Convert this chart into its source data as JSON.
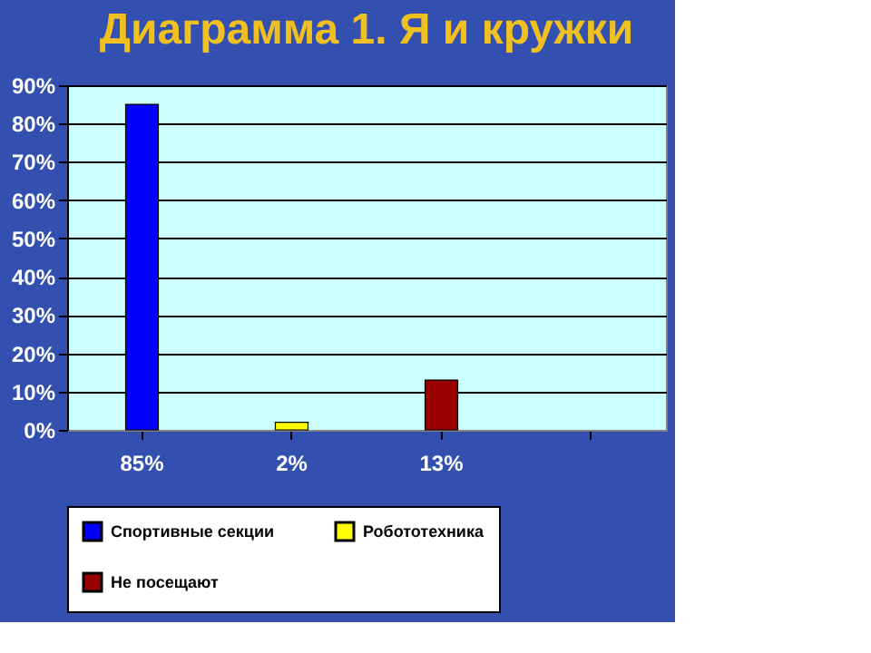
{
  "chart_data": {
    "type": "bar",
    "title": "Диаграмма 1. Я и кружки",
    "categories": [
      "85%",
      "2%",
      "13%",
      null
    ],
    "series": [
      {
        "name": "Спортивные секции",
        "color": "#0000ff",
        "values": [
          85,
          null,
          null,
          null
        ]
      },
      {
        "name": "Робототехника",
        "color": "#ffff00",
        "values": [
          null,
          2,
          null,
          null
        ]
      },
      {
        "name": "Не посещают",
        "color": "#990000",
        "values": [
          null,
          null,
          13,
          null
        ]
      }
    ],
    "ylim": [
      0,
      90
    ],
    "yticks": [
      {
        "value": 0,
        "label": "0%"
      },
      {
        "value": 10,
        "label": "10%"
      },
      {
        "value": 20,
        "label": "20%"
      },
      {
        "value": 30,
        "label": "30%"
      },
      {
        "value": 40,
        "label": "40%"
      },
      {
        "value": 50,
        "label": "50%"
      },
      {
        "value": 60,
        "label": "60%"
      },
      {
        "value": 70,
        "label": "70%"
      },
      {
        "value": 80,
        "label": "80%"
      },
      {
        "value": 90,
        "label": "90%"
      }
    ],
    "grid": "y",
    "legend": "bottom"
  }
}
